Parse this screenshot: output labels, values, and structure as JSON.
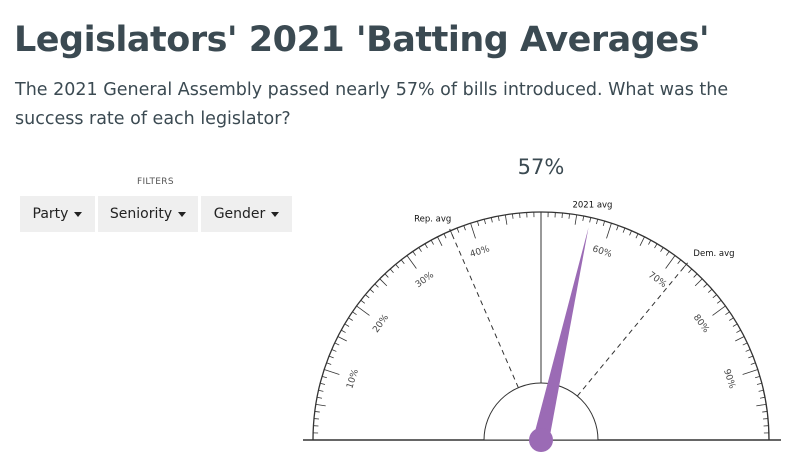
{
  "header": {
    "title": "Legislators' 2021 'Batting Averages'",
    "subtitle": "The 2021 General Assembly passed nearly 57% of bills introduced. What was the success rate of each legislator?"
  },
  "filters": {
    "label": "FILTERS",
    "party": "Party",
    "seniority": "Seniority",
    "gender": "Gender"
  },
  "chart_data": {
    "type": "gauge",
    "value": 57,
    "value_label": "57%",
    "range": [
      0,
      100
    ],
    "tick_labels": [
      "10%",
      "20%",
      "30%",
      "40%",
      "60%",
      "70%",
      "80%",
      "90%"
    ],
    "reference_lines": [
      {
        "name": "Rep. avg",
        "value": 37
      },
      {
        "name": "2021 avg",
        "value": 57
      },
      {
        "name": "Dem. avg",
        "value": 72
      }
    ],
    "center_line_value": 50,
    "needle_color": "#9b6bb5"
  }
}
